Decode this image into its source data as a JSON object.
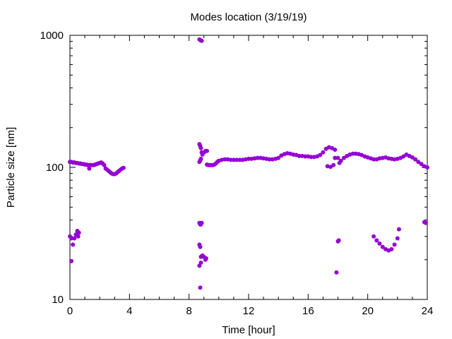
{
  "chart_data": {
    "type": "scatter",
    "title": "Modes location (3/19/19)",
    "xlabel": "Time [hour]",
    "ylabel": "Particle size [nm]",
    "xlim": [
      0,
      24
    ],
    "ylim": [
      10,
      1000
    ],
    "yscale": "log",
    "xticks": [
      "0",
      "4",
      "8",
      "12",
      "16",
      "20",
      "24"
    ],
    "yticks": [
      "10",
      "100",
      "1000"
    ],
    "grid": false,
    "legend": "none",
    "marker_color": "#9400d3",
    "series": [
      {
        "points": [
          [
            0.0,
            110
          ],
          [
            0.1,
            110
          ],
          [
            0.2,
            109
          ],
          [
            0.3,
            109
          ],
          [
            0.4,
            108
          ],
          [
            0.5,
            108
          ],
          [
            0.6,
            107
          ],
          [
            0.7,
            107
          ],
          [
            0.8,
            106
          ],
          [
            0.9,
            106
          ],
          [
            1.0,
            105
          ],
          [
            1.1,
            105
          ],
          [
            1.2,
            104
          ],
          [
            1.3,
            104
          ],
          [
            1.4,
            104
          ],
          [
            1.5,
            104
          ],
          [
            1.6,
            104
          ],
          [
            1.7,
            105
          ],
          [
            1.8,
            106
          ],
          [
            1.9,
            107
          ],
          [
            2.0,
            108
          ],
          [
            2.1,
            109
          ],
          [
            2.2,
            107
          ],
          [
            2.3,
            104
          ],
          [
            2.4,
            98
          ],
          [
            2.5,
            96
          ],
          [
            2.6,
            94
          ],
          [
            2.7,
            92
          ],
          [
            2.8,
            90
          ],
          [
            2.9,
            89
          ],
          [
            3.0,
            89
          ],
          [
            3.1,
            90
          ],
          [
            3.2,
            92
          ],
          [
            3.3,
            94
          ],
          [
            3.4,
            96
          ],
          [
            3.5,
            98
          ],
          [
            3.6,
            99
          ],
          [
            1.3,
            98
          ],
          [
            0.0,
            30
          ],
          [
            0.1,
            29
          ],
          [
            0.2,
            26
          ],
          [
            0.3,
            29
          ],
          [
            0.4,
            31
          ],
          [
            0.5,
            33
          ],
          [
            0.55,
            30
          ],
          [
            0.6,
            32
          ],
          [
            0.1,
            19.5
          ],
          [
            8.7,
            930
          ],
          [
            8.75,
            920
          ],
          [
            8.8,
            915
          ],
          [
            8.85,
            910
          ],
          [
            8.7,
            150
          ],
          [
            8.75,
            145
          ],
          [
            8.8,
            140
          ],
          [
            8.85,
            130
          ],
          [
            8.9,
            125
          ],
          [
            9.0,
            130
          ],
          [
            9.1,
            133
          ],
          [
            9.2,
            133
          ],
          [
            8.7,
            110
          ],
          [
            8.75,
            113
          ],
          [
            8.8,
            116
          ],
          [
            8.7,
            38
          ],
          [
            8.75,
            37
          ],
          [
            8.8,
            37
          ],
          [
            8.85,
            38
          ],
          [
            8.7,
            26
          ],
          [
            8.75,
            25
          ],
          [
            8.8,
            21
          ],
          [
            8.9,
            21.5
          ],
          [
            9.0,
            21
          ],
          [
            9.1,
            20
          ],
          [
            9.15,
            20.5
          ],
          [
            8.7,
            18
          ],
          [
            8.8,
            19
          ],
          [
            8.75,
            12.3
          ],
          [
            9.2,
            105
          ],
          [
            9.3,
            104
          ],
          [
            9.4,
            104
          ],
          [
            9.5,
            104
          ],
          [
            9.6,
            104
          ],
          [
            9.7,
            105
          ],
          [
            9.8,
            107
          ],
          [
            9.9,
            110
          ],
          [
            10.0,
            112
          ],
          [
            10.2,
            114
          ],
          [
            10.4,
            115
          ],
          [
            10.6,
            115
          ],
          [
            10.8,
            114
          ],
          [
            11.0,
            114
          ],
          [
            11.2,
            114
          ],
          [
            11.4,
            114
          ],
          [
            11.6,
            114
          ],
          [
            11.8,
            115
          ],
          [
            12.0,
            116
          ],
          [
            12.2,
            116
          ],
          [
            12.4,
            117
          ],
          [
            12.6,
            118
          ],
          [
            12.8,
            118
          ],
          [
            13.0,
            117
          ],
          [
            13.2,
            116
          ],
          [
            13.4,
            115
          ],
          [
            13.6,
            115
          ],
          [
            13.8,
            116
          ],
          [
            14.0,
            118
          ],
          [
            14.2,
            123
          ],
          [
            14.4,
            126
          ],
          [
            14.6,
            128
          ],
          [
            14.8,
            127
          ],
          [
            15.0,
            125
          ],
          [
            15.2,
            124
          ],
          [
            15.4,
            122
          ],
          [
            15.6,
            122
          ],
          [
            15.8,
            121
          ],
          [
            16.0,
            121
          ],
          [
            16.2,
            120
          ],
          [
            16.4,
            120
          ],
          [
            16.6,
            121
          ],
          [
            16.8,
            124
          ],
          [
            17.0,
            130
          ],
          [
            17.2,
            138
          ],
          [
            17.4,
            142
          ],
          [
            17.6,
            140
          ],
          [
            17.8,
            136
          ],
          [
            17.3,
            102
          ],
          [
            17.5,
            101
          ],
          [
            17.7,
            104
          ],
          [
            17.8,
            118
          ],
          [
            18.0,
            118
          ],
          [
            18.1,
            108
          ],
          [
            18.2,
            112
          ],
          [
            18.4,
            118
          ],
          [
            18.6,
            122
          ],
          [
            18.8,
            125
          ],
          [
            19.0,
            127
          ],
          [
            19.2,
            127
          ],
          [
            19.4,
            126
          ],
          [
            19.6,
            124
          ],
          [
            19.8,
            121
          ],
          [
            20.0,
            119
          ],
          [
            20.2,
            117
          ],
          [
            20.4,
            115
          ],
          [
            20.6,
            115
          ],
          [
            20.8,
            117
          ],
          [
            21.0,
            118
          ],
          [
            21.2,
            119
          ],
          [
            21.4,
            117
          ],
          [
            21.6,
            116
          ],
          [
            21.8,
            115
          ],
          [
            22.0,
            116
          ],
          [
            22.2,
            118
          ],
          [
            22.4,
            121
          ],
          [
            22.6,
            125
          ],
          [
            22.8,
            122
          ],
          [
            23.0,
            119
          ],
          [
            23.2,
            115
          ],
          [
            23.4,
            110
          ],
          [
            23.6,
            106
          ],
          [
            23.8,
            102
          ],
          [
            24.0,
            100
          ],
          [
            17.9,
            16
          ],
          [
            18.0,
            27.5
          ],
          [
            18.05,
            28
          ],
          [
            20.4,
            30
          ],
          [
            20.6,
            28
          ],
          [
            20.8,
            26.5
          ],
          [
            21.0,
            25
          ],
          [
            21.2,
            24
          ],
          [
            21.4,
            23.5
          ],
          [
            21.6,
            24
          ],
          [
            21.8,
            26
          ],
          [
            22.0,
            29
          ],
          [
            22.1,
            34
          ],
          [
            23.8,
            38.5
          ],
          [
            23.9,
            38
          ]
        ]
      }
    ]
  }
}
